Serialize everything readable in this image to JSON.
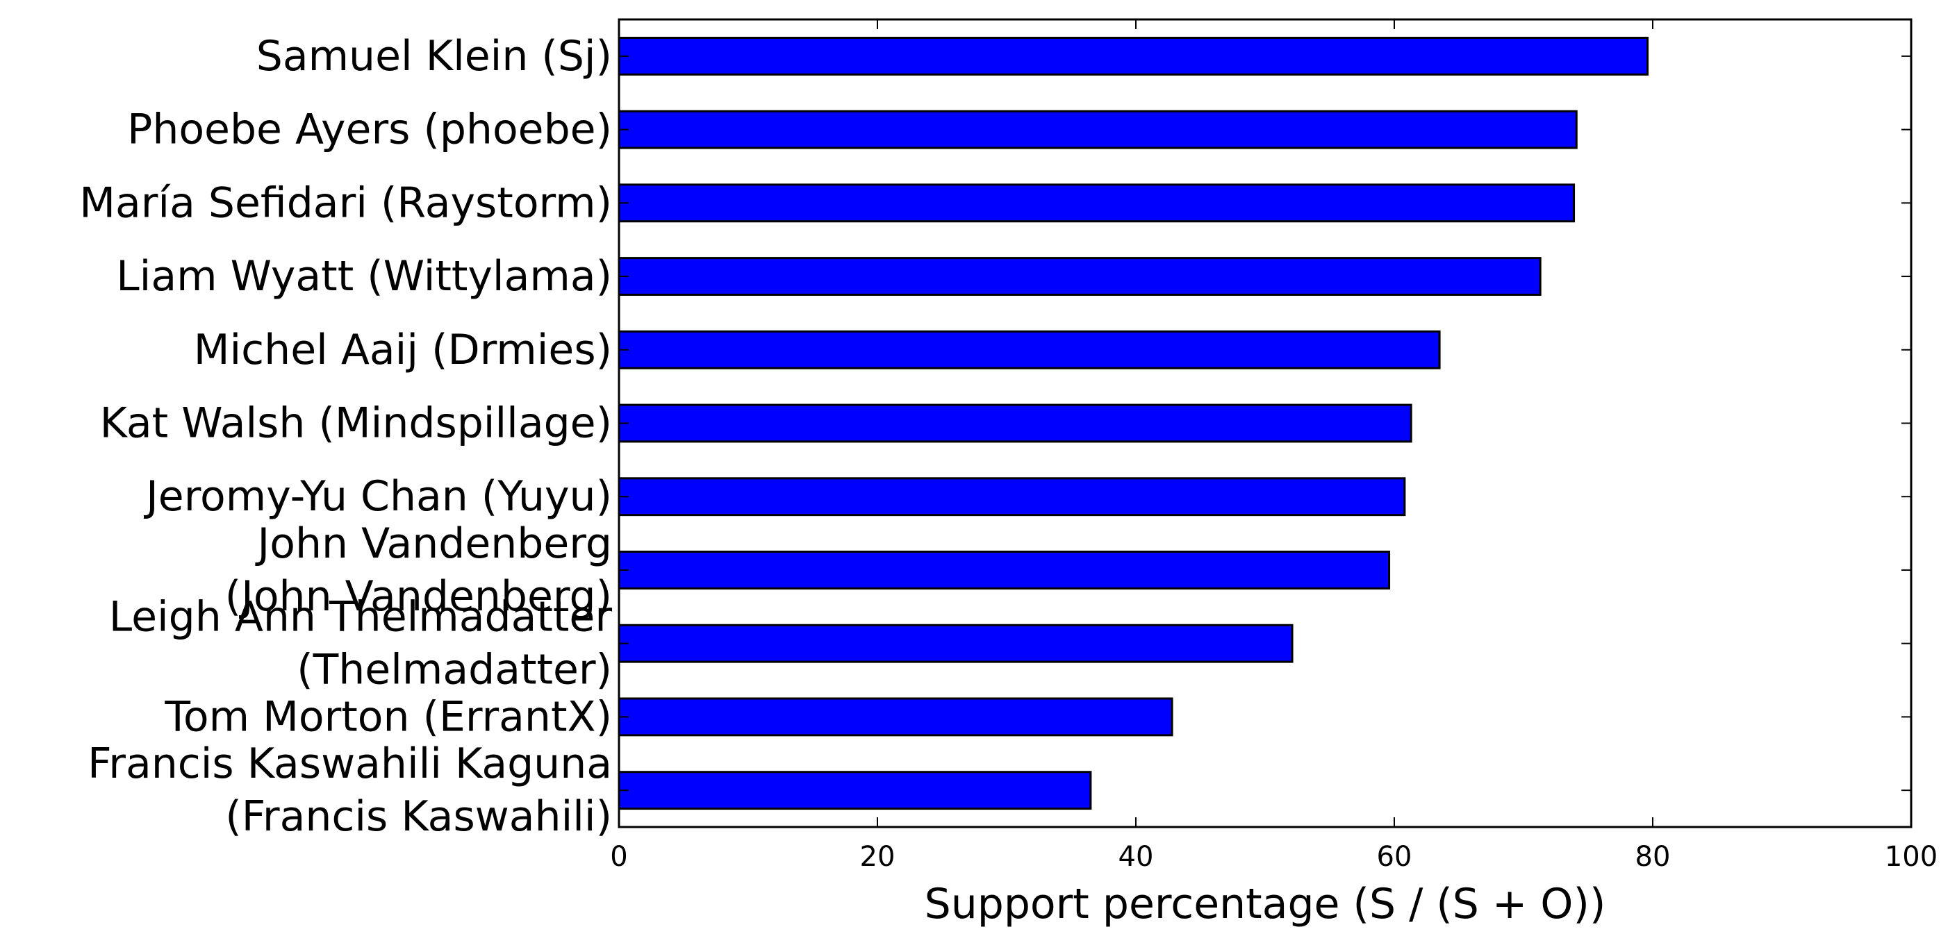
{
  "chart_data": {
    "type": "bar",
    "orientation": "horizontal",
    "title": "",
    "xlabel": "Support percentage (S / (S + O))",
    "ylabel": "",
    "xlim": [
      0,
      100
    ],
    "x_ticks": [
      0,
      20,
      40,
      60,
      80,
      100
    ],
    "grid": false,
    "legend": "none",
    "bar_color": "#0000ff",
    "categories": [
      [
        "Samuel Klein (Sj)"
      ],
      [
        "Phoebe Ayers (phoebe)"
      ],
      [
        "María Sefidari (Raystorm)"
      ],
      [
        "Liam Wyatt (Wittylama)"
      ],
      [
        "Michel Aaij (Drmies)"
      ],
      [
        "Kat Walsh (Mindspillage)"
      ],
      [
        "Jeromy-Yu Chan (Yuyu)"
      ],
      [
        "John Vandenberg",
        "(John Vandenberg)"
      ],
      [
        "Leigh Ann Thelmadatter",
        "(Thelmadatter)"
      ],
      [
        "Tom Morton (ErrantX)"
      ],
      [
        "Francis Kaswahili Kaguna",
        "(Francis Kaswahili)"
      ]
    ],
    "values": [
      79.6,
      74.1,
      73.9,
      71.3,
      63.5,
      61.3,
      60.8,
      59.6,
      52.1,
      42.8,
      36.5
    ]
  }
}
